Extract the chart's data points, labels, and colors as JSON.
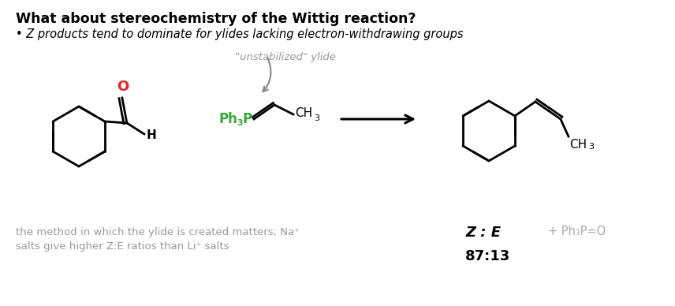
{
  "title": "What about stereochemistry of the Wittig reaction?",
  "bullet_text": "• Z products tend to dominate for ylides lacking electron-withdrawing groups",
  "unstabilized_label": "\"unstabilized\" ylide",
  "bottom_note_line1": "the method in which the ylide is created matters; Na⁺",
  "bottom_note_line2": "salts give higher Z:E ratios than Li⁺ salts",
  "ze_label": "Z : E",
  "ratio_label": "87:13",
  "byproduct_label": "+ Ph₃P=O",
  "background_color": "#ffffff",
  "title_color": "#000000",
  "bullet_color": "#000000",
  "unstabilized_color": "#999999",
  "bottom_note_color": "#999999",
  "ze_color": "#000000",
  "ratio_color": "#000000",
  "byproduct_color": "#aaaaaa",
  "green_color": "#33aa33",
  "red_color": "#ee2222",
  "arrow_color": "#888888",
  "black": "#000000"
}
